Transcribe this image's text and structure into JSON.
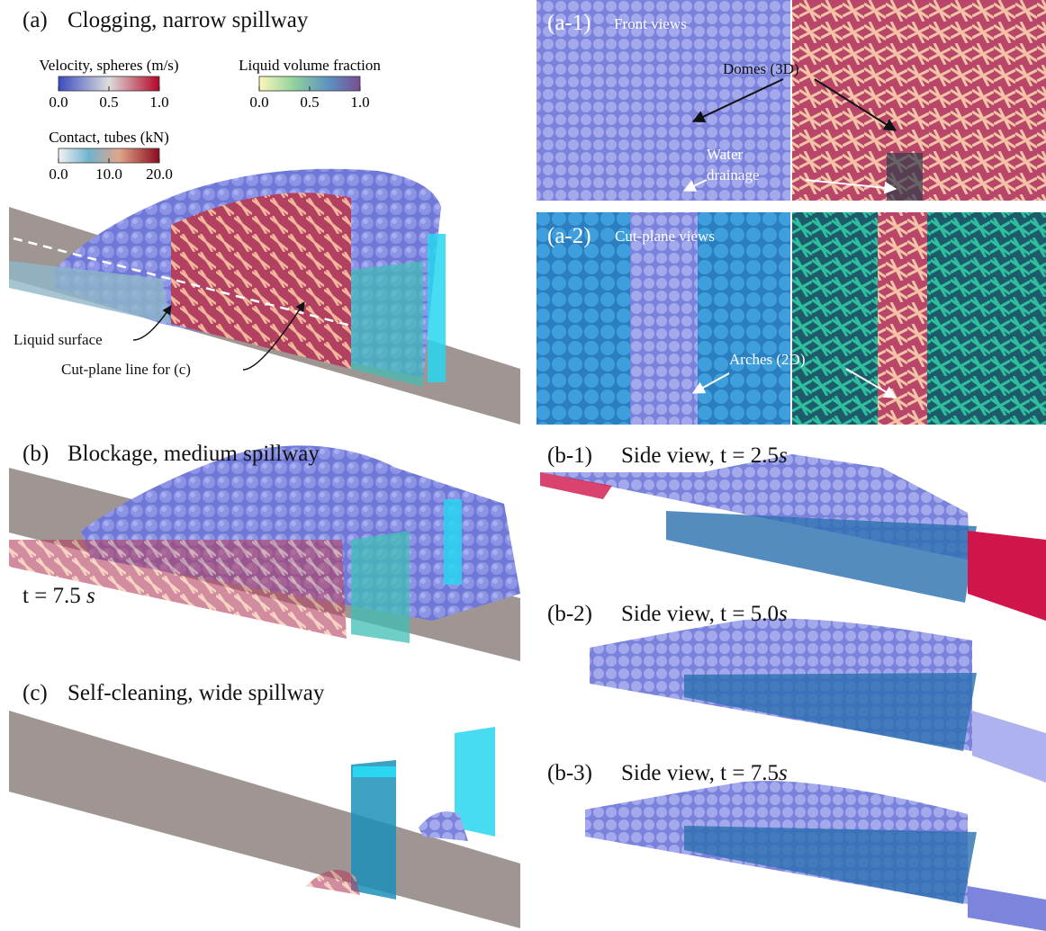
{
  "panel_a": {
    "label": "(a)",
    "title": "Clogging, narrow spillway",
    "liquid_surface": "Liquid surface",
    "cut_plane": "Cut-plane line for  (c)"
  },
  "colorbars": [
    {
      "title": "Velocity, spheres (m/s)",
      "ticks": [
        "0.0",
        "0.5",
        "1.0"
      ]
    },
    {
      "title": "Liquid volume fraction",
      "ticks": [
        "0.0",
        "0.5",
        "1.0"
      ]
    },
    {
      "title": "Contact, tubes (kN)",
      "ticks": [
        "0.0",
        "10.0",
        "20.0"
      ]
    }
  ],
  "panel_a1": {
    "label": "(a-1)",
    "title": "Front views",
    "domes": "Domes (3D)",
    "water": "Water",
    "drainage": "drainage"
  },
  "panel_a2": {
    "label": "(a-2)",
    "title": "Cut-plane views",
    "arches": "Arches (2D)"
  },
  "panel_b": {
    "label": "(b)",
    "title": "Blockage, medium spillway",
    "time": "t = 7.5",
    "time_unit": "s"
  },
  "panel_b1": {
    "label": "(b-1)",
    "title": "Side view, t = 2.5",
    "time_unit": "s"
  },
  "panel_b2": {
    "label": "(b-2)",
    "title": "Side view, t = 5.0",
    "time_unit": "s"
  },
  "panel_b3": {
    "label": "(b-3)",
    "title": "Side view, t = 7.5",
    "time_unit": "s"
  },
  "panel_c": {
    "label": "(c)",
    "title": "Self-cleaning, wide spillway"
  }
}
